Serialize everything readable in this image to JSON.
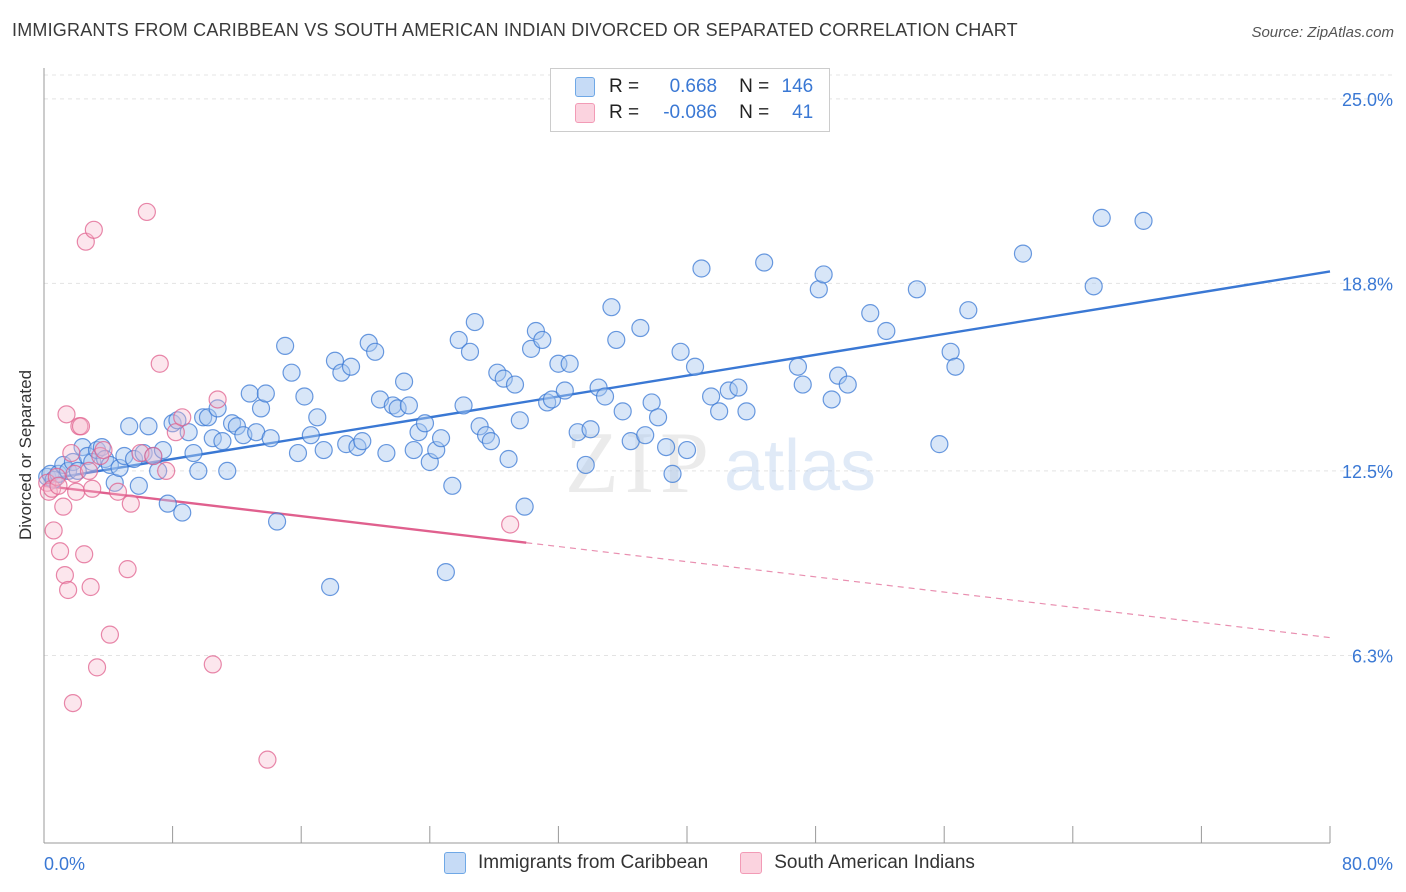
{
  "header": {
    "title": "IMMIGRANTS FROM CARIBBEAN VS SOUTH AMERICAN INDIAN DIVORCED OR SEPARATED CORRELATION CHART",
    "source": "Source: ZipAtlas.com"
  },
  "legend_top": {
    "rows": [
      {
        "r_label": "R =",
        "r_value": "0.668",
        "n_label": "N =",
        "n_value": "146",
        "color": "#6fa8e6"
      },
      {
        "r_label": "R =",
        "r_value": "-0.086",
        "n_label": "N =",
        "n_value": "41",
        "color": "#f29bb6"
      }
    ]
  },
  "watermark": {
    "zip": "ZIP",
    "atlas": "atlas"
  },
  "colors": {
    "blue": "#3a78d4",
    "blue_fill": "#a9c8f0",
    "pink": "#e0608e",
    "pink_fill": "#f6b6cb",
    "grid": "#e3e3e3"
  },
  "chart_data": {
    "type": "scatter",
    "title": "IMMIGRANTS FROM CARIBBEAN VS SOUTH AMERICAN INDIAN DIVORCED OR SEPARATED CORRELATION CHART",
    "xlabel": "",
    "ylabel": "Divorced or Separated",
    "xlim": [
      0,
      80
    ],
    "ylim": [
      0,
      25.8
    ],
    "x_tick_labels": [
      "0.0%",
      "80.0%"
    ],
    "y_ticks": [
      6.3,
      12.5,
      18.8,
      25.0
    ],
    "y_tick_labels": [
      "6.3%",
      "12.5%",
      "18.8%",
      "25.0%"
    ],
    "grid": true,
    "legend_position": "top-center",
    "series": [
      {
        "name": "Immigrants from Caribbean",
        "color": "#3a78d4",
        "r": 0.668,
        "n": 146,
        "trend": {
          "x": [
            0,
            80
          ],
          "y": [
            12.2,
            19.2
          ],
          "dashed_from": null
        },
        "points": [
          [
            0.2,
            12.3
          ],
          [
            0.4,
            12.4
          ],
          [
            0.6,
            12.2
          ],
          [
            0.9,
            12.4
          ],
          [
            1.2,
            12.7
          ],
          [
            1.5,
            12.5
          ],
          [
            1.8,
            12.8
          ],
          [
            2.1,
            12.5
          ],
          [
            2.4,
            13.3
          ],
          [
            2.7,
            13.0
          ],
          [
            3.0,
            12.8
          ],
          [
            3.3,
            13.2
          ],
          [
            3.6,
            13.3
          ],
          [
            3.8,
            12.9
          ],
          [
            4.1,
            12.7
          ],
          [
            4.4,
            12.1
          ],
          [
            4.7,
            12.6
          ],
          [
            5.0,
            13.0
          ],
          [
            5.3,
            14.0
          ],
          [
            5.6,
            12.9
          ],
          [
            5.9,
            12.0
          ],
          [
            6.2,
            13.1
          ],
          [
            6.5,
            14.0
          ],
          [
            6.8,
            13.0
          ],
          [
            7.1,
            12.5
          ],
          [
            7.4,
            13.2
          ],
          [
            7.7,
            11.4
          ],
          [
            8.0,
            14.1
          ],
          [
            8.3,
            14.2
          ],
          [
            8.6,
            11.1
          ],
          [
            9.0,
            13.8
          ],
          [
            9.3,
            13.1
          ],
          [
            9.6,
            12.5
          ],
          [
            9.9,
            14.3
          ],
          [
            10.2,
            14.3
          ],
          [
            10.5,
            13.6
          ],
          [
            10.8,
            14.6
          ],
          [
            11.1,
            13.5
          ],
          [
            11.4,
            12.5
          ],
          [
            11.7,
            14.1
          ],
          [
            12.0,
            14.0
          ],
          [
            12.4,
            13.7
          ],
          [
            12.8,
            15.1
          ],
          [
            13.2,
            13.8
          ],
          [
            13.5,
            14.6
          ],
          [
            13.8,
            15.1
          ],
          [
            14.1,
            13.6
          ],
          [
            14.5,
            10.8
          ],
          [
            15.0,
            16.7
          ],
          [
            15.4,
            15.8
          ],
          [
            15.8,
            13.1
          ],
          [
            16.2,
            15.0
          ],
          [
            16.6,
            13.7
          ],
          [
            17.0,
            14.3
          ],
          [
            17.4,
            13.2
          ],
          [
            17.8,
            8.6
          ],
          [
            18.1,
            16.2
          ],
          [
            18.5,
            15.8
          ],
          [
            18.8,
            13.4
          ],
          [
            19.1,
            16.0
          ],
          [
            19.5,
            13.3
          ],
          [
            19.8,
            13.5
          ],
          [
            20.2,
            16.8
          ],
          [
            20.6,
            16.5
          ],
          [
            20.9,
            14.9
          ],
          [
            21.3,
            13.1
          ],
          [
            21.7,
            14.7
          ],
          [
            22.0,
            14.6
          ],
          [
            22.4,
            15.5
          ],
          [
            22.7,
            14.7
          ],
          [
            23.0,
            13.2
          ],
          [
            23.3,
            13.8
          ],
          [
            23.7,
            14.1
          ],
          [
            24.0,
            12.8
          ],
          [
            24.4,
            13.2
          ],
          [
            24.7,
            13.6
          ],
          [
            25.0,
            9.1
          ],
          [
            25.4,
            12.0
          ],
          [
            25.8,
            16.9
          ],
          [
            26.1,
            14.7
          ],
          [
            26.5,
            16.5
          ],
          [
            26.8,
            17.5
          ],
          [
            27.1,
            14.0
          ],
          [
            27.5,
            13.7
          ],
          [
            27.8,
            13.5
          ],
          [
            28.2,
            15.8
          ],
          [
            28.6,
            15.6
          ],
          [
            28.9,
            12.9
          ],
          [
            29.3,
            15.4
          ],
          [
            29.6,
            14.2
          ],
          [
            29.9,
            11.3
          ],
          [
            30.3,
            16.6
          ],
          [
            30.6,
            17.2
          ],
          [
            31.0,
            16.9
          ],
          [
            31.3,
            14.8
          ],
          [
            31.6,
            14.9
          ],
          [
            32.0,
            16.1
          ],
          [
            32.4,
            15.2
          ],
          [
            32.7,
            16.1
          ],
          [
            33.2,
            13.8
          ],
          [
            33.7,
            12.7
          ],
          [
            34.0,
            13.9
          ],
          [
            34.5,
            15.3
          ],
          [
            34.9,
            15.0
          ],
          [
            35.3,
            18.0
          ],
          [
            35.6,
            16.9
          ],
          [
            36.0,
            14.5
          ],
          [
            36.5,
            13.5
          ],
          [
            37.1,
            17.3
          ],
          [
            37.4,
            13.7
          ],
          [
            37.8,
            14.8
          ],
          [
            38.2,
            14.3
          ],
          [
            38.7,
            13.3
          ],
          [
            39.1,
            12.4
          ],
          [
            39.6,
            16.5
          ],
          [
            40.0,
            13.2
          ],
          [
            40.5,
            16.0
          ],
          [
            40.9,
            19.3
          ],
          [
            41.5,
            15.0
          ],
          [
            42.0,
            14.5
          ],
          [
            42.6,
            15.2
          ],
          [
            43.2,
            15.3
          ],
          [
            43.7,
            14.5
          ],
          [
            44.8,
            19.5
          ],
          [
            46.9,
            16.0
          ],
          [
            47.2,
            15.4
          ],
          [
            48.2,
            18.6
          ],
          [
            48.5,
            19.1
          ],
          [
            49.0,
            14.9
          ],
          [
            49.4,
            15.7
          ],
          [
            50.0,
            15.4
          ],
          [
            51.4,
            17.8
          ],
          [
            52.4,
            17.2
          ],
          [
            54.3,
            18.6
          ],
          [
            55.7,
            13.4
          ],
          [
            56.4,
            16.5
          ],
          [
            56.7,
            16.0
          ],
          [
            57.5,
            17.9
          ],
          [
            60.9,
            19.8
          ],
          [
            65.3,
            18.7
          ],
          [
            65.8,
            21.0
          ],
          [
            68.4,
            20.9
          ]
        ]
      },
      {
        "name": "South American Indians",
        "color": "#e0608e",
        "r": -0.086,
        "n": 41,
        "trend": {
          "x": [
            0,
            80
          ],
          "y": [
            12.0,
            6.9
          ],
          "dashed_from": 30
        },
        "points": [
          [
            0.2,
            12.1
          ],
          [
            0.3,
            11.8
          ],
          [
            0.5,
            11.9
          ],
          [
            0.6,
            10.5
          ],
          [
            0.8,
            12.3
          ],
          [
            0.9,
            12.0
          ],
          [
            1.0,
            9.8
          ],
          [
            1.2,
            11.3
          ],
          [
            1.3,
            9.0
          ],
          [
            1.4,
            14.4
          ],
          [
            1.5,
            8.5
          ],
          [
            1.7,
            13.1
          ],
          [
            1.8,
            4.7
          ],
          [
            1.9,
            12.4
          ],
          [
            2.0,
            11.8
          ],
          [
            2.2,
            14.0
          ],
          [
            2.3,
            14.0
          ],
          [
            2.5,
            9.7
          ],
          [
            2.6,
            20.2
          ],
          [
            2.8,
            12.5
          ],
          [
            2.9,
            8.6
          ],
          [
            3.0,
            11.9
          ],
          [
            3.1,
            20.6
          ],
          [
            3.3,
            5.9
          ],
          [
            3.5,
            13.0
          ],
          [
            3.7,
            13.2
          ],
          [
            4.1,
            7.0
          ],
          [
            4.6,
            11.8
          ],
          [
            5.2,
            9.2
          ],
          [
            5.4,
            11.4
          ],
          [
            6.0,
            13.1
          ],
          [
            6.4,
            21.2
          ],
          [
            6.8,
            13.0
          ],
          [
            7.2,
            16.1
          ],
          [
            7.6,
            12.5
          ],
          [
            8.2,
            13.8
          ],
          [
            8.6,
            14.3
          ],
          [
            10.8,
            14.9
          ],
          [
            10.5,
            6.0
          ],
          [
            13.9,
            2.8
          ],
          [
            29.0,
            10.7
          ]
        ]
      }
    ]
  },
  "axes": {
    "ylabel": "Divorced or Separated",
    "x_min_label": "0.0%",
    "x_max_label": "80.0%"
  },
  "bottom_legend": [
    {
      "label": "Immigrants from Caribbean",
      "color": "#3a78d4"
    },
    {
      "label": "South American Indians",
      "color": "#e0608e"
    }
  ]
}
